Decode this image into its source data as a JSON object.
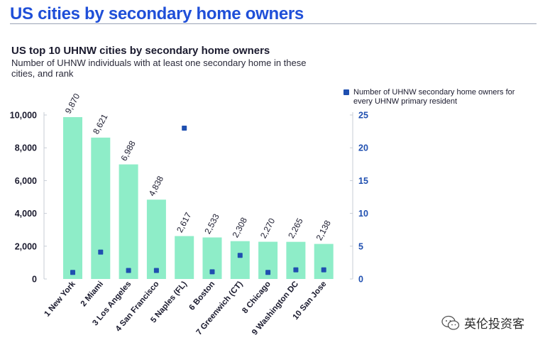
{
  "page_title": "US cities by secondary home owners",
  "watermark": "英伦投资客",
  "chart_data": {
    "type": "bar",
    "title": "US top 10 UHNW cities by secondary home owners",
    "subtitle": "Number of UHNW individuals with at least one secondary home in these cities, and rank",
    "categories": [
      "1 New York",
      "2 Miami",
      "3 Los Angeles",
      "4 San Francisco",
      "5 Naples (FL)",
      "6 Boston",
      "7 Greenwich (CT)",
      "8 Chicago",
      "9 Washington DC",
      "10 San Jose"
    ],
    "series": [
      {
        "type": "bar",
        "axis": "left",
        "color": "#8eedc8",
        "values": [
          9870,
          8621,
          6988,
          4838,
          2617,
          2533,
          2308,
          2270,
          2265,
          2138
        ],
        "labels": [
          "9,870",
          "8,621",
          "6,988",
          "4,838",
          "2,617",
          "2,533",
          "2,308",
          "2,270",
          "2,265",
          "2,138"
        ]
      },
      {
        "type": "scatter",
        "axis": "right",
        "name": "Number of UHNW secondary home owners for every UHNW primary resident",
        "color": "#1f4fb0",
        "values": [
          1.0,
          4.1,
          1.3,
          1.3,
          23.0,
          1.1,
          3.6,
          1.0,
          1.4,
          1.4
        ]
      }
    ],
    "y_left": {
      "ylim": [
        0,
        10000
      ],
      "ticks": [
        0,
        2000,
        4000,
        6000,
        8000,
        10000
      ],
      "tick_labels": [
        "0",
        "2,000",
        "4,000",
        "6,000",
        "8,000",
        "10,000"
      ]
    },
    "y_right": {
      "ylim": [
        0,
        25
      ],
      "ticks": [
        0,
        5,
        10,
        15,
        20,
        25
      ],
      "tick_labels": [
        "0",
        "5",
        "10",
        "15",
        "20",
        "25"
      ]
    },
    "grid": false,
    "legend_position": "top-right"
  }
}
